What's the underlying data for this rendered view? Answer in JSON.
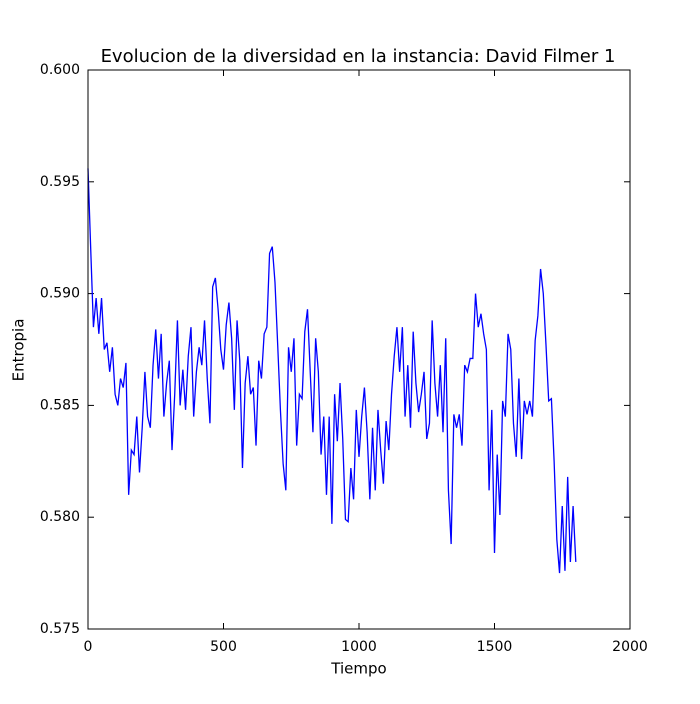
{
  "chart_data": {
    "type": "line",
    "title": "Evolucion de la diversidad en la instancia: David Filmer 1",
    "xlabel": "Tiempo",
    "ylabel": "Entropia",
    "x": [
      0,
      10,
      20,
      30,
      40,
      50,
      60,
      70,
      80,
      90,
      100,
      110,
      120,
      130,
      140,
      150,
      160,
      170,
      180,
      190,
      200,
      210,
      220,
      230,
      240,
      250,
      260,
      270,
      280,
      290,
      300,
      310,
      320,
      330,
      340,
      350,
      360,
      370,
      380,
      390,
      400,
      410,
      420,
      430,
      440,
      450,
      460,
      470,
      480,
      490,
      500,
      510,
      520,
      530,
      540,
      550,
      560,
      570,
      580,
      590,
      600,
      610,
      620,
      630,
      640,
      650,
      660,
      670,
      680,
      690,
      700,
      710,
      720,
      730,
      740,
      750,
      760,
      770,
      780,
      790,
      800,
      810,
      820,
      830,
      840,
      850,
      860,
      870,
      880,
      890,
      900,
      910,
      920,
      930,
      940,
      950,
      960,
      970,
      980,
      990,
      1000,
      1010,
      1020,
      1030,
      1040,
      1050,
      1060,
      1070,
      1080,
      1090,
      1100,
      1110,
      1120,
      1130,
      1140,
      1150,
      1160,
      1170,
      1180,
      1190,
      1200,
      1210,
      1220,
      1230,
      1240,
      1250,
      1260,
      1270,
      1280,
      1290,
      1300,
      1310,
      1320,
      1330,
      1340,
      1350,
      1360,
      1370,
      1380,
      1390,
      1400,
      1410,
      1420,
      1430,
      1440,
      1450,
      1460,
      1470,
      1480,
      1490,
      1500,
      1510,
      1520,
      1530,
      1540,
      1550,
      1560,
      1570,
      1580,
      1590,
      1600,
      1610,
      1620,
      1630,
      1640,
      1650,
      1660,
      1670,
      1680,
      1690,
      1700,
      1710,
      1720,
      1730,
      1740,
      1750,
      1760,
      1770,
      1780,
      1790,
      1800
    ],
    "series": [
      {
        "name": "Entropia",
        "color": "#0000ff",
        "values": [
          0.5956,
          0.592,
          0.5885,
          0.5898,
          0.5882,
          0.5898,
          0.5875,
          0.5878,
          0.5865,
          0.5876,
          0.5855,
          0.585,
          0.5862,
          0.5858,
          0.5869,
          0.581,
          0.583,
          0.5828,
          0.5845,
          0.582,
          0.584,
          0.5865,
          0.5845,
          0.584,
          0.5868,
          0.5884,
          0.5862,
          0.5882,
          0.5845,
          0.586,
          0.587,
          0.583,
          0.5855,
          0.5888,
          0.585,
          0.5866,
          0.5848,
          0.5872,
          0.5885,
          0.5845,
          0.5865,
          0.5876,
          0.5868,
          0.5888,
          0.5862,
          0.5842,
          0.5903,
          0.5907,
          0.5893,
          0.5875,
          0.5866,
          0.5886,
          0.5896,
          0.588,
          0.5848,
          0.5888,
          0.587,
          0.5822,
          0.586,
          0.5872,
          0.5855,
          0.5858,
          0.5832,
          0.587,
          0.5862,
          0.5882,
          0.5885,
          0.5918,
          0.5921,
          0.5905,
          0.5877,
          0.5848,
          0.5824,
          0.5812,
          0.5876,
          0.5865,
          0.588,
          0.5832,
          0.5855,
          0.5853,
          0.5883,
          0.5893,
          0.5865,
          0.5838,
          0.588,
          0.5865,
          0.5828,
          0.5845,
          0.581,
          0.5845,
          0.5797,
          0.5855,
          0.5834,
          0.586,
          0.5835,
          0.5799,
          0.5798,
          0.5822,
          0.5808,
          0.5848,
          0.5827,
          0.5845,
          0.5858,
          0.5838,
          0.5808,
          0.584,
          0.5812,
          0.5848,
          0.583,
          0.5815,
          0.5843,
          0.583,
          0.5855,
          0.5872,
          0.5885,
          0.5865,
          0.5885,
          0.5845,
          0.5868,
          0.584,
          0.5883,
          0.586,
          0.5847,
          0.5855,
          0.5865,
          0.5835,
          0.5842,
          0.5888,
          0.586,
          0.5845,
          0.5868,
          0.5838,
          0.588,
          0.5812,
          0.5788,
          0.5846,
          0.584,
          0.5846,
          0.5832,
          0.5868,
          0.5865,
          0.5871,
          0.5871,
          0.59,
          0.5885,
          0.5891,
          0.5882,
          0.5875,
          0.5812,
          0.5848,
          0.5784,
          0.5828,
          0.5801,
          0.5852,
          0.5845,
          0.5882,
          0.5875,
          0.5842,
          0.5827,
          0.5862,
          0.5826,
          0.5852,
          0.5846,
          0.5852,
          0.5845,
          0.5879,
          0.589,
          0.5911,
          0.59,
          0.5877,
          0.5852,
          0.5853,
          0.5825,
          0.579,
          0.5775,
          0.5805,
          0.5776,
          0.5818,
          0.578,
          0.5805,
          0.578
        ]
      }
    ],
    "xlim": [
      0,
      2000
    ],
    "xticks": [
      0,
      500,
      1000,
      1500,
      2000
    ],
    "ylim": [
      0.575,
      0.6
    ],
    "yticks": [
      0.575,
      {
        "value": 0.58,
        "label": "0.580"
      },
      0.585,
      {
        "value": 0.59,
        "label": "0.590"
      },
      0.595,
      {
        "value": 0.6,
        "label": "0.600"
      }
    ]
  }
}
